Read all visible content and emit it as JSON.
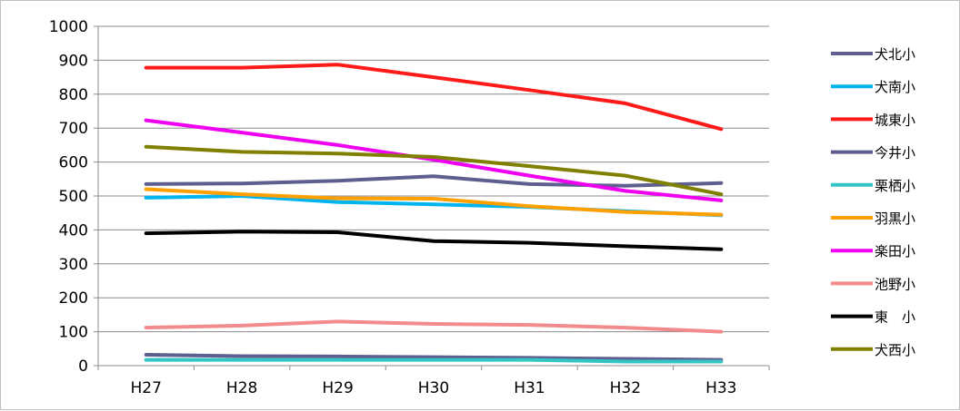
{
  "chart_data": {
    "type": "line",
    "title": "",
    "xlabel": "",
    "ylabel": "",
    "ylim": [
      0,
      1000
    ],
    "yticks": [
      0,
      100,
      200,
      300,
      400,
      500,
      600,
      700,
      800,
      900,
      1000
    ],
    "grid": true,
    "legend_position": "right",
    "categories": [
      "H27",
      "H28",
      "H29",
      "H30",
      "H31",
      "H32",
      "H33"
    ],
    "series": [
      {
        "name": "犬北小",
        "color": "#5f5f8f",
        "values": [
          535,
          537,
          545,
          558,
          535,
          530,
          538
        ]
      },
      {
        "name": "犬南小",
        "color": "#00b4f0",
        "values": [
          495,
          500,
          482,
          475,
          468,
          455,
          443
        ]
      },
      {
        "name": "城東小",
        "color": "#ff1a1a",
        "values": [
          878,
          878,
          887,
          850,
          812,
          773,
          697
        ]
      },
      {
        "name": "今井小",
        "color": "#5f5f8f",
        "values": [
          32,
          28,
          27,
          25,
          23,
          20,
          17
        ]
      },
      {
        "name": "栗栖小",
        "color": "#33c4c4",
        "values": [
          17,
          17,
          17,
          17,
          17,
          12,
          12
        ]
      },
      {
        "name": "羽黒小",
        "color": "#ffa000",
        "values": [
          520,
          505,
          493,
          492,
          470,
          453,
          445
        ]
      },
      {
        "name": "楽田小",
        "color": "#f000f0",
        "values": [
          723,
          687,
          650,
          607,
          560,
          515,
          487
        ]
      },
      {
        "name": "池野小",
        "color": "#f28b8b",
        "values": [
          112,
          118,
          130,
          123,
          120,
          112,
          100
        ]
      },
      {
        "name": "東　小",
        "color": "#000000",
        "values": [
          390,
          395,
          393,
          367,
          362,
          352,
          343
        ]
      },
      {
        "name": "犬西小",
        "color": "#808000",
        "values": [
          645,
          630,
          625,
          615,
          588,
          560,
          505
        ]
      }
    ]
  }
}
